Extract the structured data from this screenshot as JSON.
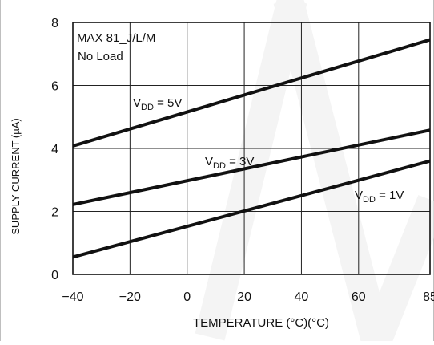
{
  "chart_data": {
    "type": "line",
    "title": "",
    "xlabel": "TEMPERATURE (°C)(°C)",
    "ylabel": "SUPPLY CURRENT (µA)",
    "xlim": [
      -40,
      85
    ],
    "ylim": [
      0,
      8
    ],
    "xticks": [
      -40,
      -20,
      0,
      20,
      40,
      60,
      85
    ],
    "xtick_labels": [
      "−40",
      "−20",
      "0",
      "20",
      "40",
      "60",
      "85"
    ],
    "yticks": [
      0,
      2,
      4,
      6,
      8
    ],
    "ytick_labels": [
      "0",
      "2",
      "4",
      "6",
      "8"
    ],
    "grid": true,
    "x": [
      -40,
      85
    ],
    "series": [
      {
        "name": "V_DD = 5V",
        "label_main": "V",
        "label_sub": "DD",
        "label_rest": " = 5V",
        "values": [
          4.08,
          7.45
        ]
      },
      {
        "name": "V_DD = 3V",
        "label_main": "V",
        "label_sub": "DD",
        "label_rest": " = 3V",
        "values": [
          2.22,
          4.58
        ]
      },
      {
        "name": "V_DD = 1V",
        "label_main": "V",
        "label_sub": "DD",
        "label_rest": " = 1V",
        "values": [
          0.55,
          3.6
        ]
      }
    ],
    "annotations": [
      "MAX 81_J/L/M",
      "No Load"
    ],
    "line_color": "#111111",
    "grid_color": "#222222"
  }
}
